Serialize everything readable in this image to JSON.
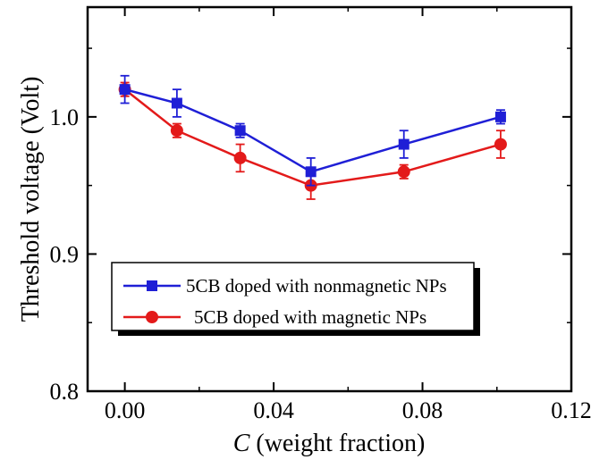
{
  "chart_data": {
    "type": "line",
    "xlabel_italic": "C",
    "xlabel_rest": " (weight fraction)",
    "ylabel": "Threshold voltage (Volt)",
    "xlim": [
      -0.01,
      0.12
    ],
    "ylim": [
      0.8,
      1.08
    ],
    "xticks": [
      0.0,
      0.04,
      0.08,
      0.12
    ],
    "xtick_labels": [
      "0.00",
      "0.04",
      "0.08",
      "0.12"
    ],
    "yticks": [
      0.8,
      0.9,
      1.0
    ],
    "ytick_labels": [
      "0.8",
      "0.9",
      "1.0"
    ],
    "legend_position": "lower-left",
    "series": [
      {
        "name": "5CB doped with nonmagnetic NPs",
        "color": "#1f1fd6",
        "marker": "square",
        "x": [
          0.0,
          0.014,
          0.031,
          0.05,
          0.075,
          0.101
        ],
        "y": [
          1.02,
          1.01,
          0.99,
          0.96,
          0.98,
          1.0
        ],
        "err": [
          0.01,
          0.01,
          0.005,
          0.01,
          0.01,
          0.005
        ]
      },
      {
        "name": "5CB doped with magnetic NPs",
        "color": "#e31a1a",
        "marker": "circle",
        "x": [
          0.0,
          0.014,
          0.031,
          0.05,
          0.075,
          0.101
        ],
        "y": [
          1.02,
          0.99,
          0.97,
          0.95,
          0.96,
          0.98
        ],
        "err": [
          0.005,
          0.005,
          0.01,
          0.01,
          0.005,
          0.01
        ]
      }
    ]
  }
}
